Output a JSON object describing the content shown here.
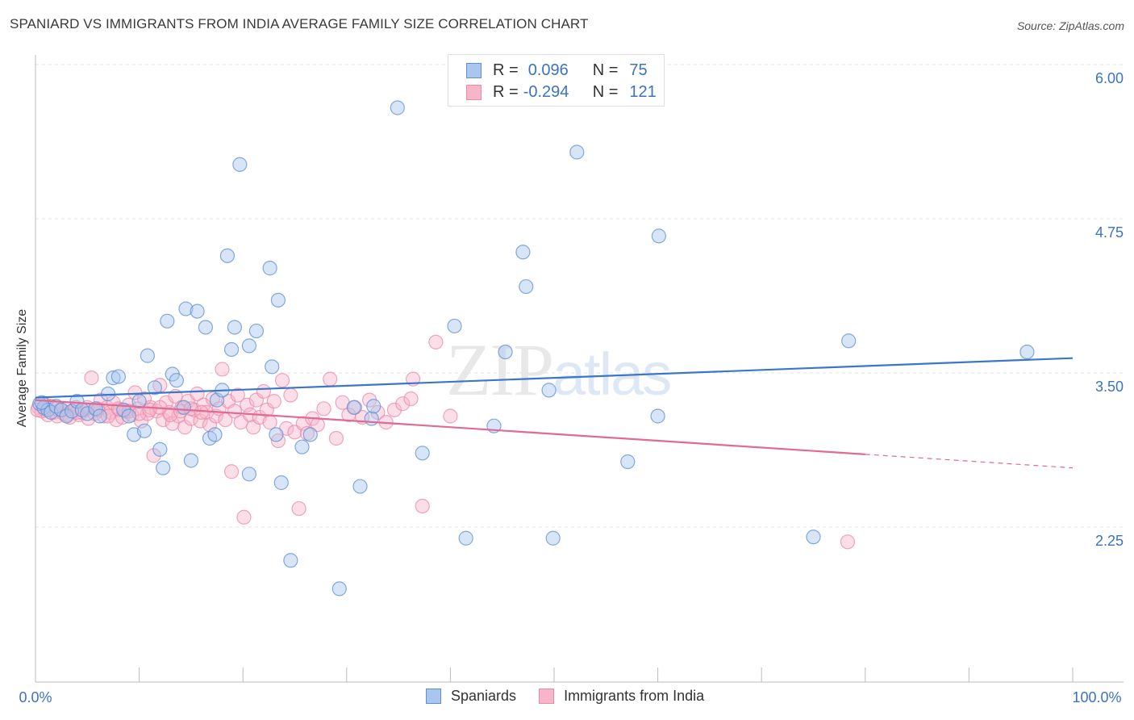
{
  "header": {
    "title": "SPANIARD VS IMMIGRANTS FROM INDIA AVERAGE FAMILY SIZE CORRELATION CHART",
    "source": "Source: ZipAtlas.com"
  },
  "legend": {
    "rows": [
      {
        "r_label": "R =",
        "r_value": "0.096",
        "n_label": "N =",
        "n_value": "75"
      },
      {
        "r_label": "R =",
        "r_value": "-0.294",
        "n_label": "N =",
        "n_value": "121"
      }
    ],
    "bottom": [
      "Spaniards",
      "Immigrants from India"
    ]
  },
  "watermark": {
    "zip": "ZIP",
    "atlas": "atlas"
  },
  "colors": {
    "blue_fill": "#a9c6ee",
    "blue_stroke": "#5b8fd6",
    "blue_line": "#3a76cc",
    "pink_fill": "#f6b5c9",
    "pink_stroke": "#e98aa9",
    "pink_line": "#e06a93",
    "tick_label": "#3b73c4"
  },
  "chart_data": {
    "type": "scatter",
    "title": "SPANIARD VS IMMIGRANTS FROM INDIA AVERAGE FAMILY SIZE CORRELATION CHART",
    "xlabel": "",
    "ylabel": "Average Family Size",
    "xlim": [
      0,
      100
    ],
    "ylim": [
      1.1,
      6.1
    ],
    "x_tick_labels": [
      "0.0%",
      "100.0%"
    ],
    "y_ticks": [
      2.25,
      3.5,
      4.75,
      6.0
    ],
    "y_tick_labels": [
      "2.25",
      "3.50",
      "4.75",
      "6.00"
    ],
    "grid": true,
    "legend_position": "top-center",
    "series": [
      {
        "name": "Spaniards",
        "r": 0.096,
        "n": 75,
        "trend": {
          "x0": 0,
          "y0": 3.3,
          "x1": 100,
          "y1": 3.62
        },
        "points": [
          [
            0.4,
            3.25
          ],
          [
            0.8,
            3.22
          ],
          [
            1.2,
            3.2
          ],
          [
            1.5,
            3.18
          ],
          [
            2.0,
            3.23
          ],
          [
            2.5,
            3.2
          ],
          [
            3.0,
            3.15
          ],
          [
            3.5,
            3.19
          ],
          [
            4.0,
            3.27
          ],
          [
            4.5,
            3.2
          ],
          [
            5.0,
            3.17
          ],
          [
            5.8,
            3.21
          ],
          [
            6.2,
            3.15
          ],
          [
            7.0,
            3.33
          ],
          [
            7.5,
            3.46
          ],
          [
            8.0,
            3.47
          ],
          [
            8.5,
            3.2
          ],
          [
            9.0,
            3.15
          ],
          [
            9.5,
            3.0
          ],
          [
            10.0,
            3.27
          ],
          [
            10.5,
            3.03
          ],
          [
            10.8,
            3.64
          ],
          [
            11.5,
            3.38
          ],
          [
            12.0,
            2.88
          ],
          [
            12.3,
            2.73
          ],
          [
            12.7,
            3.92
          ],
          [
            13.2,
            3.49
          ],
          [
            13.6,
            3.44
          ],
          [
            14.3,
            3.22
          ],
          [
            14.5,
            4.02
          ],
          [
            15.0,
            2.79
          ],
          [
            15.6,
            4.0
          ],
          [
            16.4,
            3.87
          ],
          [
            16.8,
            2.97
          ],
          [
            17.3,
            3.0
          ],
          [
            17.5,
            3.28
          ],
          [
            18.0,
            3.36
          ],
          [
            18.5,
            4.45
          ],
          [
            18.9,
            3.69
          ],
          [
            19.2,
            3.87
          ],
          [
            19.7,
            5.19
          ],
          [
            20.6,
            3.72
          ],
          [
            20.6,
            2.68
          ],
          [
            21.3,
            3.84
          ],
          [
            22.6,
            4.35
          ],
          [
            22.8,
            3.55
          ],
          [
            23.2,
            3.0
          ],
          [
            23.4,
            4.09
          ],
          [
            23.7,
            2.61
          ],
          [
            24.6,
            1.98
          ],
          [
            25.7,
            2.9
          ],
          [
            26.5,
            3.0
          ],
          [
            29.3,
            1.75
          ],
          [
            30.7,
            3.22
          ],
          [
            31.3,
            2.58
          ],
          [
            32.4,
            3.13
          ],
          [
            32.6,
            3.23
          ],
          [
            34.9,
            5.65
          ],
          [
            37.3,
            2.85
          ],
          [
            40.4,
            3.88
          ],
          [
            41.5,
            2.16
          ],
          [
            44.2,
            3.07
          ],
          [
            45.3,
            3.67
          ],
          [
            47.0,
            4.48
          ],
          [
            47.3,
            4.2
          ],
          [
            49.5,
            3.36
          ],
          [
            49.9,
            2.16
          ],
          [
            52.2,
            5.29
          ],
          [
            57.1,
            2.78
          ],
          [
            60.0,
            3.15
          ],
          [
            60.1,
            4.61
          ],
          [
            75.0,
            2.17
          ],
          [
            78.4,
            3.76
          ],
          [
            95.6,
            3.67
          ],
          [
            0.6,
            3.26
          ]
        ]
      },
      {
        "name": "Immigrants from India",
        "r": -0.294,
        "n": 121,
        "trend": {
          "x0": 0,
          "y0": 3.28,
          "x1": 80,
          "y1": 2.84,
          "x2": 100,
          "y2": 2.73
        },
        "points": [
          [
            0.3,
            3.22
          ],
          [
            0.6,
            3.19
          ],
          [
            0.9,
            3.2
          ],
          [
            1.2,
            3.16
          ],
          [
            1.5,
            3.23
          ],
          [
            1.8,
            3.18
          ],
          [
            2.1,
            3.15
          ],
          [
            2.4,
            3.2
          ],
          [
            2.7,
            3.17
          ],
          [
            3.0,
            3.21
          ],
          [
            3.3,
            3.14
          ],
          [
            3.6,
            3.19
          ],
          [
            3.9,
            3.22
          ],
          [
            4.2,
            3.16
          ],
          [
            4.5,
            3.18
          ],
          [
            4.8,
            3.2
          ],
          [
            5.1,
            3.13
          ],
          [
            5.4,
            3.46
          ],
          [
            5.7,
            3.17
          ],
          [
            6.0,
            3.21
          ],
          [
            6.3,
            3.28
          ],
          [
            6.6,
            3.15
          ],
          [
            6.9,
            3.22
          ],
          [
            7.2,
            3.18
          ],
          [
            7.5,
            3.26
          ],
          [
            7.8,
            3.12
          ],
          [
            8.1,
            3.2
          ],
          [
            8.4,
            3.14
          ],
          [
            8.7,
            3.19
          ],
          [
            9.0,
            3.24
          ],
          [
            9.3,
            3.16
          ],
          [
            9.6,
            3.34
          ],
          [
            9.9,
            3.21
          ],
          [
            10.2,
            3.11
          ],
          [
            10.5,
            3.29
          ],
          [
            10.8,
            3.17
          ],
          [
            11.1,
            3.22
          ],
          [
            11.4,
            2.83
          ],
          [
            11.7,
            3.19
          ],
          [
            12.0,
            3.4
          ],
          [
            12.3,
            3.12
          ],
          [
            12.6,
            3.26
          ],
          [
            12.9,
            3.18
          ],
          [
            13.2,
            3.09
          ],
          [
            13.5,
            3.31
          ],
          [
            13.8,
            3.15
          ],
          [
            14.1,
            3.22
          ],
          [
            14.4,
            3.06
          ],
          [
            14.7,
            3.27
          ],
          [
            15.0,
            3.13
          ],
          [
            15.3,
            3.2
          ],
          [
            15.6,
            3.33
          ],
          [
            15.9,
            3.11
          ],
          [
            16.2,
            3.24
          ],
          [
            16.5,
            3.18
          ],
          [
            16.8,
            3.08
          ],
          [
            17.1,
            3.29
          ],
          [
            17.4,
            3.15
          ],
          [
            17.7,
            3.21
          ],
          [
            18.0,
            3.53
          ],
          [
            18.3,
            3.12
          ],
          [
            18.6,
            3.27
          ],
          [
            18.9,
            2.7
          ],
          [
            19.2,
            3.19
          ],
          [
            19.5,
            3.32
          ],
          [
            19.8,
            3.1
          ],
          [
            20.1,
            2.33
          ],
          [
            20.4,
            3.24
          ],
          [
            20.7,
            3.16
          ],
          [
            21.0,
            3.06
          ],
          [
            21.3,
            3.28
          ],
          [
            21.6,
            3.14
          ],
          [
            22.0,
            3.35
          ],
          [
            22.3,
            3.2
          ],
          [
            22.6,
            3.1
          ],
          [
            23.0,
            3.27
          ],
          [
            23.4,
            2.95
          ],
          [
            23.8,
            3.44
          ],
          [
            24.2,
            3.05
          ],
          [
            24.6,
            3.32
          ],
          [
            25.0,
            3.02
          ],
          [
            25.4,
            2.4
          ],
          [
            25.8,
            3.09
          ],
          [
            26.2,
            3.01
          ],
          [
            26.7,
            3.13
          ],
          [
            27.2,
            3.08
          ],
          [
            27.8,
            3.21
          ],
          [
            28.4,
            3.45
          ],
          [
            29.0,
            2.97
          ],
          [
            29.6,
            3.26
          ],
          [
            30.2,
            3.16
          ],
          [
            30.8,
            3.22
          ],
          [
            31.5,
            3.14
          ],
          [
            32.2,
            3.28
          ],
          [
            33.0,
            3.18
          ],
          [
            33.8,
            3.1
          ],
          [
            34.6,
            3.2
          ],
          [
            35.4,
            3.25
          ],
          [
            36.2,
            3.29
          ],
          [
            36.4,
            3.45
          ],
          [
            37.3,
            2.42
          ],
          [
            38.6,
            3.75
          ],
          [
            40.0,
            3.15
          ],
          [
            1.0,
            3.24
          ],
          [
            2.0,
            3.21
          ],
          [
            3.0,
            3.16
          ],
          [
            4.0,
            3.18
          ],
          [
            5.0,
            3.22
          ],
          [
            6.0,
            3.2
          ],
          [
            7.0,
            3.15
          ],
          [
            8.0,
            3.21
          ],
          [
            9.0,
            3.19
          ],
          [
            10.0,
            3.17
          ],
          [
            11.0,
            3.2
          ],
          [
            12.0,
            3.22
          ],
          [
            13.0,
            3.16
          ],
          [
            14.0,
            3.19
          ],
          [
            15.0,
            3.21
          ],
          [
            16.0,
            3.18
          ],
          [
            78.3,
            2.13
          ],
          [
            0.2,
            3.2
          ]
        ]
      }
    ]
  }
}
